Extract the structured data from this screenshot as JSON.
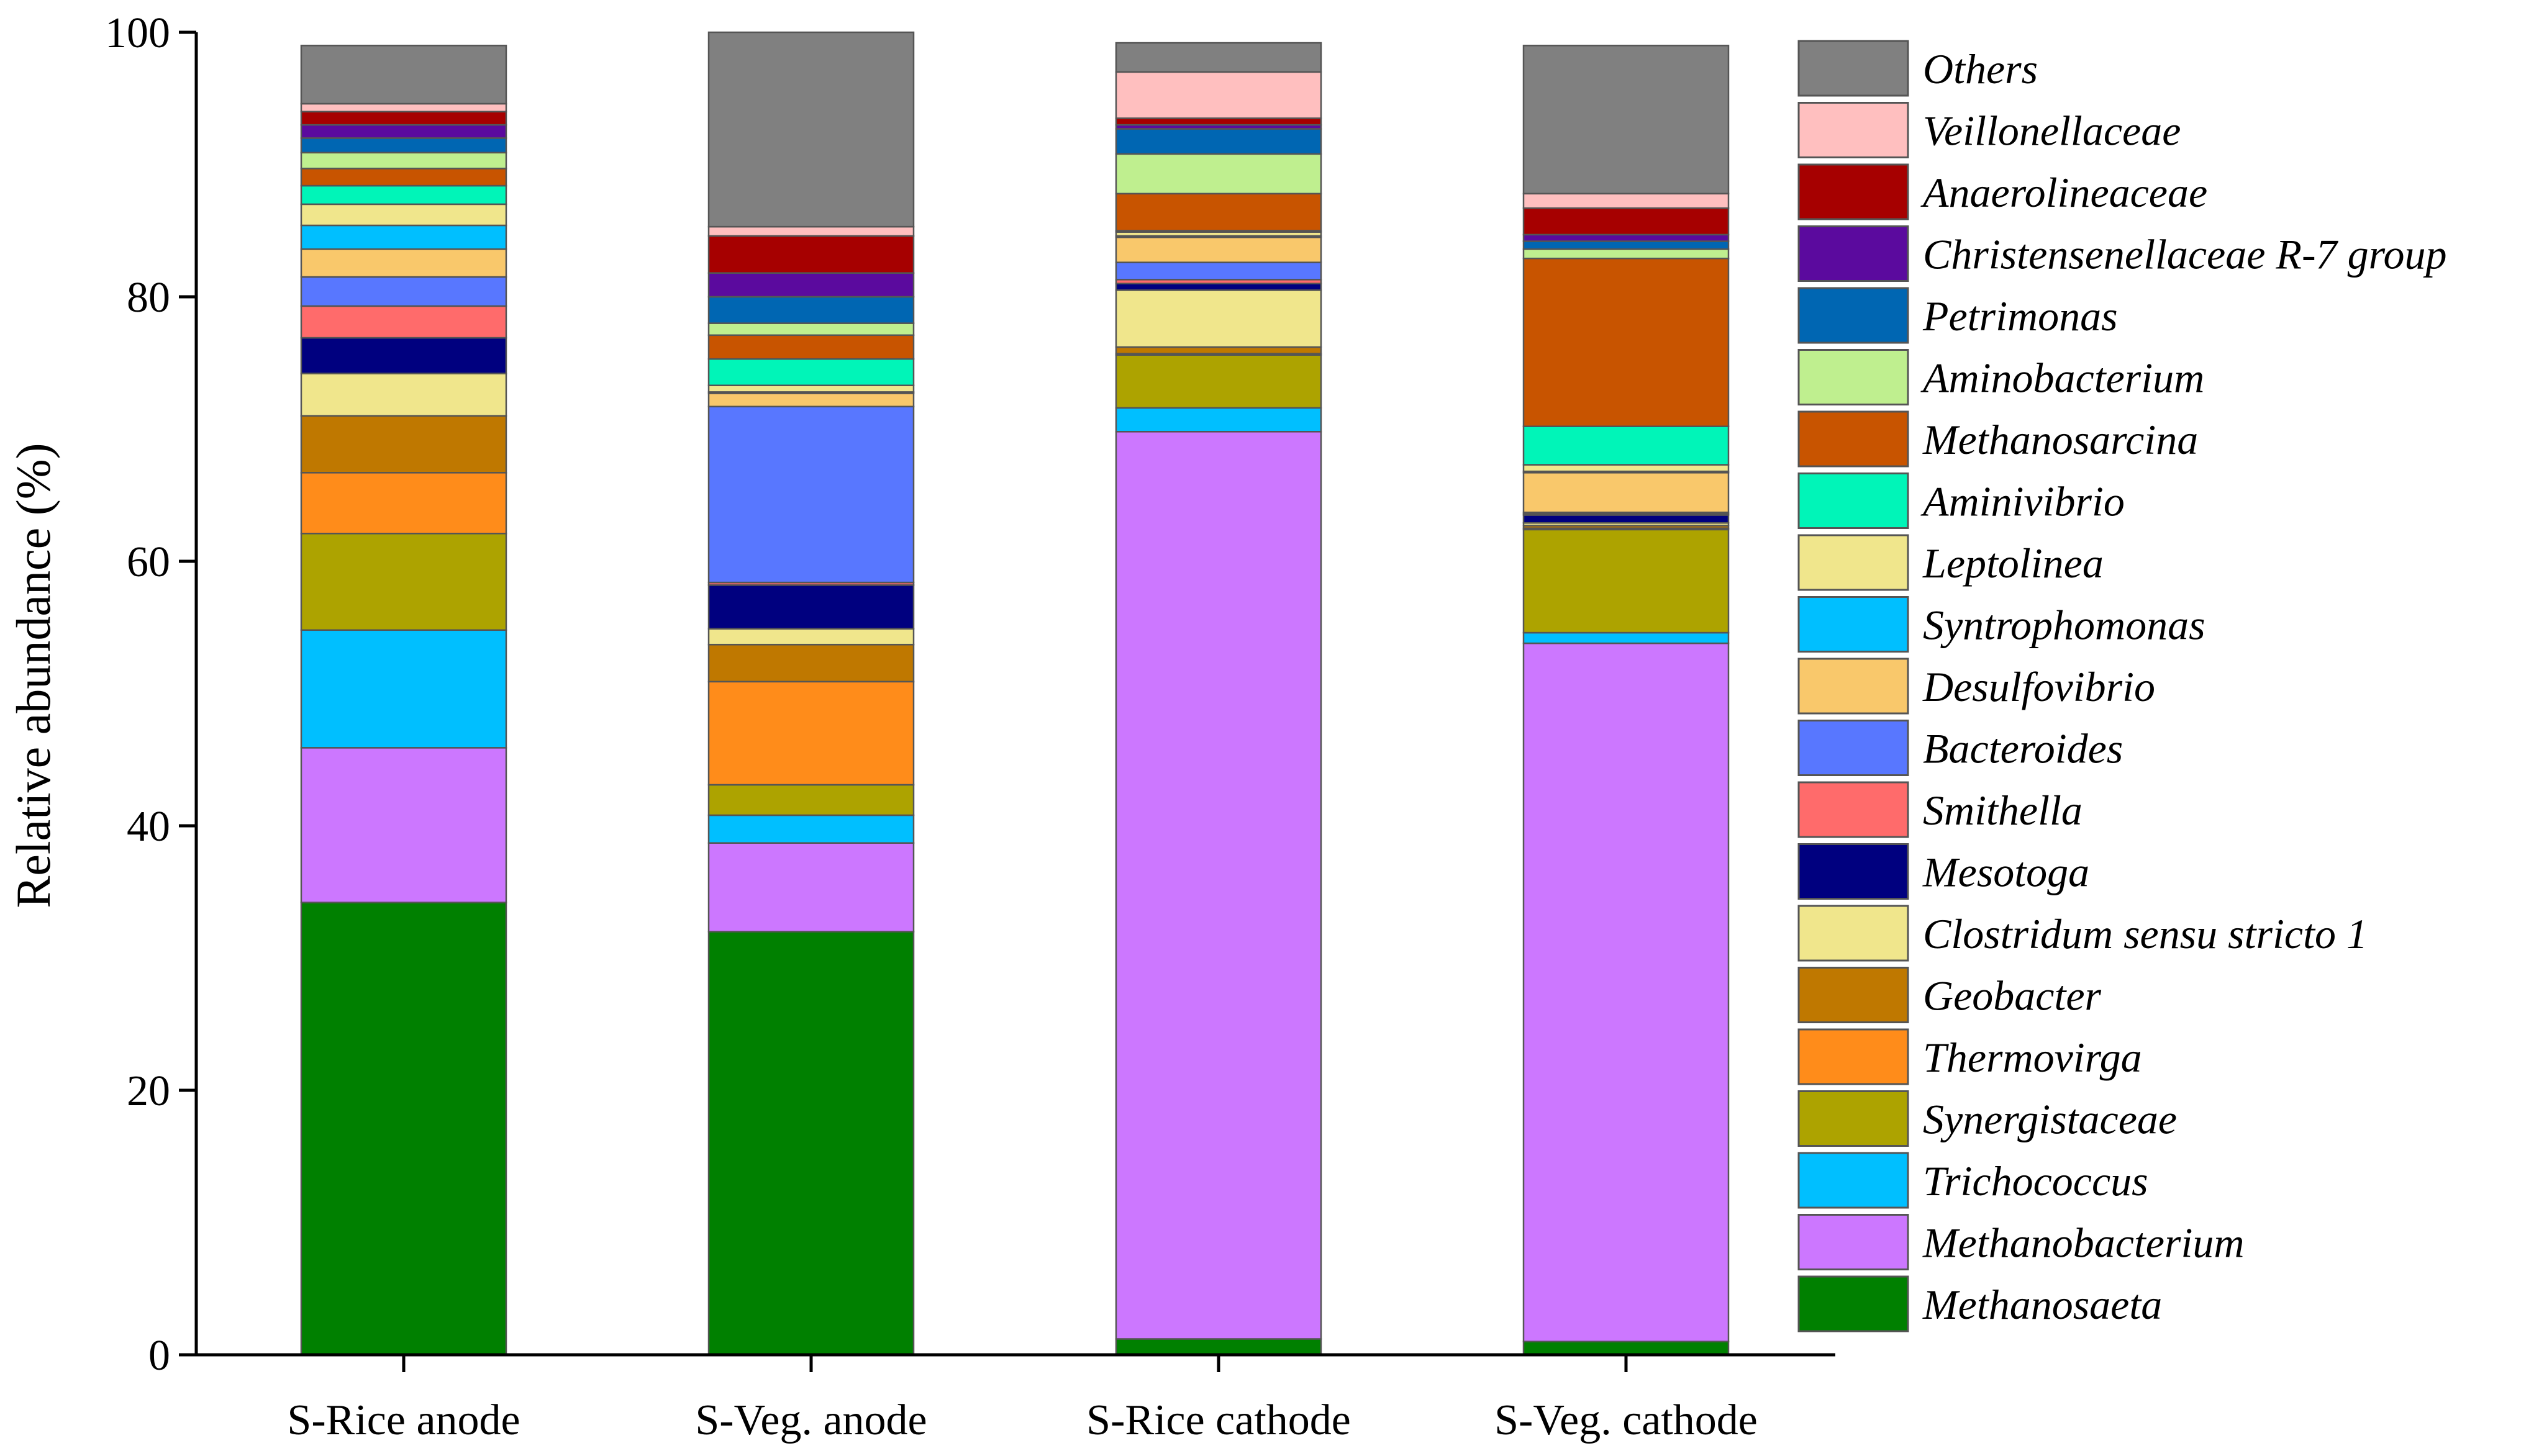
{
  "chart_data": {
    "type": "bar",
    "stacked": true,
    "title": "",
    "xlabel": "",
    "ylabel": "Relative abundance (%)",
    "ylim": [
      0,
      100
    ],
    "yticks": [
      0,
      20,
      40,
      60,
      80,
      100
    ],
    "grid": false,
    "legend_position": "right",
    "categories": [
      "S-Rice anode",
      "S-Veg. anode",
      "S-Rice cathode",
      "S-Veg. cathode"
    ],
    "series": [
      {
        "name": "Methanosaeta",
        "color": "#008000",
        "values": [
          34.2,
          32.0,
          1.2,
          1.0
        ]
      },
      {
        "name": "Methanobacterium",
        "color": "#CC77FF",
        "values": [
          11.7,
          6.7,
          68.6,
          52.8
        ]
      },
      {
        "name": "Trichococcus",
        "color": "#00BFFF",
        "values": [
          8.9,
          2.1,
          1.8,
          0.8
        ]
      },
      {
        "name": "Synergistaceae",
        "color": "#ADA300",
        "values": [
          7.3,
          2.3,
          4.0,
          7.8
        ]
      },
      {
        "name": "Thermovirga",
        "color": "#FF8C1A",
        "values": [
          4.6,
          7.8,
          0.1,
          0.1
        ]
      },
      {
        "name": "Geobacter",
        "color": "#BF7800",
        "values": [
          4.3,
          2.8,
          0.5,
          0.2
        ]
      },
      {
        "name": "Clostridum sensu stricto 1",
        "color": "#F0E68C",
        "values": [
          3.2,
          1.2,
          4.3,
          0.2
        ]
      },
      {
        "name": "Mesotoga",
        "color": "#00007F",
        "values": [
          2.7,
          3.3,
          0.5,
          0.6
        ]
      },
      {
        "name": "Smithella",
        "color": "#FF6B6B",
        "values": [
          2.4,
          0.2,
          0.3,
          0.1
        ]
      },
      {
        "name": "Bacteroides",
        "color": "#5877FF",
        "values": [
          2.2,
          13.3,
          1.3,
          0.1
        ]
      },
      {
        "name": "Desulfovibrio",
        "color": "#F9C86B",
        "values": [
          2.1,
          1.0,
          1.9,
          3.0
        ]
      },
      {
        "name": "Syntrophomonas",
        "color": "#00BFFF",
        "values": [
          1.8,
          0.1,
          0.1,
          0.1
        ]
      },
      {
        "name": "Leptolinea",
        "color": "#F0E68C",
        "values": [
          1.6,
          0.5,
          0.3,
          0.5
        ]
      },
      {
        "name": "Aminivibrio",
        "color": "#00F5B8",
        "values": [
          1.4,
          2.0,
          0.1,
          2.9
        ]
      },
      {
        "name": "Methanosarcina",
        "color": "#C85400",
        "values": [
          1.3,
          1.8,
          2.8,
          12.7
        ]
      },
      {
        "name": "Aminobacterium",
        "color": "#BFEF8F",
        "values": [
          1.2,
          0.9,
          3.0,
          0.7
        ]
      },
      {
        "name": "Petrimonas",
        "color": "#0066B2",
        "values": [
          1.1,
          2.0,
          1.9,
          0.6
        ]
      },
      {
        "name": "Christensenellaceae R-7 group",
        "color": "#5B0A9E",
        "values": [
          1.0,
          1.8,
          0.3,
          0.5
        ]
      },
      {
        "name": "Anaerolineaceae",
        "color": "#A60000",
        "values": [
          1.0,
          2.8,
          0.5,
          2.0
        ]
      },
      {
        "name": "Veillonellaceae",
        "color": "#FFBFBF",
        "values": [
          0.6,
          0.7,
          3.5,
          1.1
        ]
      },
      {
        "name": "Others",
        "color": "#808080",
        "values": [
          4.4,
          14.7,
          2.2,
          11.2
        ]
      }
    ]
  }
}
